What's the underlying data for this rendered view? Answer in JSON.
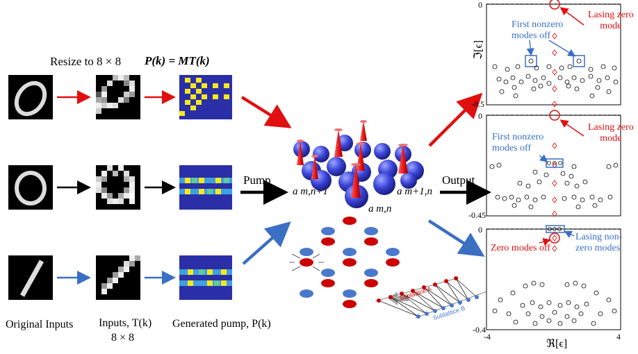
{
  "title_resize": "Resize to 8 × 8",
  "title_formula": "P(k) = MT(k)",
  "label_pump": "Pump",
  "label_output": "Output",
  "bottom_labels": {
    "original": "Original Inputs",
    "inputs": "Inputs, T(k)",
    "inputs_size": "8 × 8",
    "generated": "Generated pump, P(k)"
  },
  "lattice_labels": {
    "a_m_n1": "a m,n+1",
    "a_m1_n": "a m+1,n",
    "a_m_n": "a m,n"
  },
  "sublattice_labels": {
    "a": "Sublattice A",
    "b": "Sublattice B"
  },
  "plot1": {
    "y_top": "0",
    "y_bottom": "-0.5",
    "ylabel": "ℑ[ϵ]",
    "ann_red": "Lasing zero\nmode",
    "ann_blue": "First nonzero\nmodes off"
  },
  "plot2": {
    "y_top": "0",
    "y_bottom": "-0.45",
    "ann_red": "Lasing zero\nmode",
    "ann_blue": "First nonzero\nmodes off"
  },
  "plot3": {
    "y_top": "0",
    "y_bottom": "-0.4",
    "x_left": "-4",
    "x_right": "4",
    "xlabel": "ℜ[ϵ]",
    "ann_red": "Zero modes off",
    "ann_blue": "Lasing non-\nzero modes"
  },
  "colors": {
    "red": "#e01010",
    "blue": "#3a6fc4",
    "pump_bg": "#2a2fa8",
    "pump_yellow": "#f5e81c",
    "sphere_blue": "#3a44d8"
  }
}
